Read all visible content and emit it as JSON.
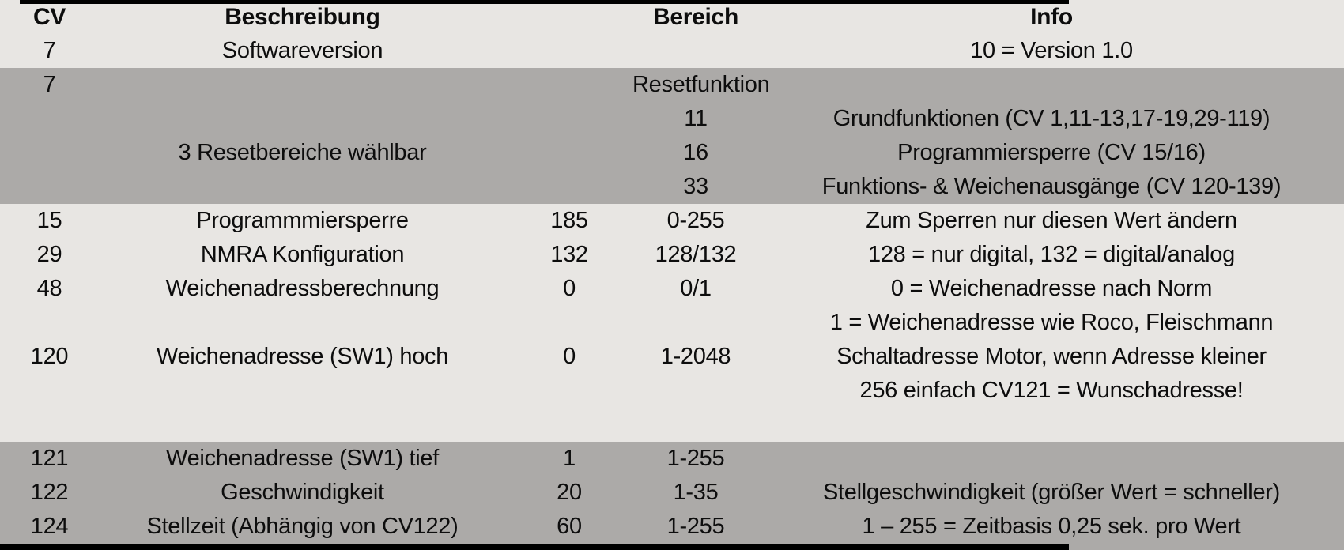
{
  "table": {
    "colors": {
      "light_row_bg": "#e8e6e3",
      "dark_row_bg": "#acaaa8",
      "text": "#0d0d0d",
      "border": "#000000"
    },
    "headers": {
      "cv": "CV",
      "beschreibung": "Beschreibung",
      "wert": "",
      "bereich": "Bereich",
      "info": "Info"
    },
    "sections": [
      {
        "shade": "light",
        "rows": [
          {
            "cv": "7",
            "beschreibung": "Softwareversion",
            "wert": "",
            "bereich": "",
            "info": "10 = Version 1.0"
          }
        ]
      },
      {
        "shade": "dark",
        "rows": [
          {
            "cv": "7",
            "beschreibung": "",
            "wert": "",
            "bereich": "Resetfunktion",
            "info": ""
          },
          {
            "cv": "",
            "beschreibung": "",
            "wert": "",
            "bereich": "11",
            "info": "Grundfunktionen (CV 1,11-13,17-19,29-119)"
          },
          {
            "cv": "",
            "beschreibung": "3 Resetbereiche wählbar",
            "wert": "",
            "bereich": "16",
            "info": "Programmiersperre (CV 15/16)"
          },
          {
            "cv": "",
            "beschreibung": "",
            "wert": "",
            "bereich": "33",
            "info": "Funktions- & Weichenausgänge (CV 120-139)"
          }
        ]
      },
      {
        "shade": "light",
        "rows": [
          {
            "cv": "15",
            "beschreibung": "Programmmiersperre",
            "wert": "185",
            "bereich": "0-255",
            "info": "Zum Sperren nur diesen Wert ändern"
          },
          {
            "cv": "29",
            "beschreibung": "NMRA Konfiguration",
            "wert": "132",
            "bereich": "128/132",
            "info": "128 = nur digital, 132 = digital/analog"
          },
          {
            "cv": "48",
            "beschreibung": "Weichenadressberechnung",
            "wert": "0",
            "bereich": "0/1",
            "info": "0 = Weichenadresse nach Norm"
          },
          {
            "cv": "",
            "beschreibung": "",
            "wert": "",
            "bereich": "",
            "info": "1 = Weichenadresse wie Roco, Fleischmann"
          },
          {
            "cv": "120",
            "beschreibung": "Weichenadresse (SW1) hoch",
            "wert": "0",
            "bereich": "1-2048",
            "info": "Schaltadresse Motor, wenn Adresse kleiner"
          },
          {
            "cv": "",
            "beschreibung": "",
            "wert": "",
            "bereich": "",
            "info": "256 einfach CV121 = Wunschadresse!"
          },
          {
            "cv": "",
            "beschreibung": "",
            "wert": "",
            "bereich": "",
            "info": ""
          }
        ]
      },
      {
        "shade": "dark",
        "rows": [
          {
            "cv": "121",
            "beschreibung": "Weichenadresse (SW1) tief",
            "wert": "1",
            "bereich": "1-255",
            "info": ""
          },
          {
            "cv": "122",
            "beschreibung": "Geschwindigkeit",
            "wert": "20",
            "bereich": "1-35",
            "info": "Stellgeschwindigkeit (größer Wert = schneller)"
          },
          {
            "cv": "124",
            "beschreibung": "Stellzeit (Abhängig von CV122)",
            "wert": "60",
            "bereich": "1-255",
            "info": "1 – 255 = Zeitbasis 0,25 sek. pro Wert"
          }
        ]
      }
    ]
  }
}
